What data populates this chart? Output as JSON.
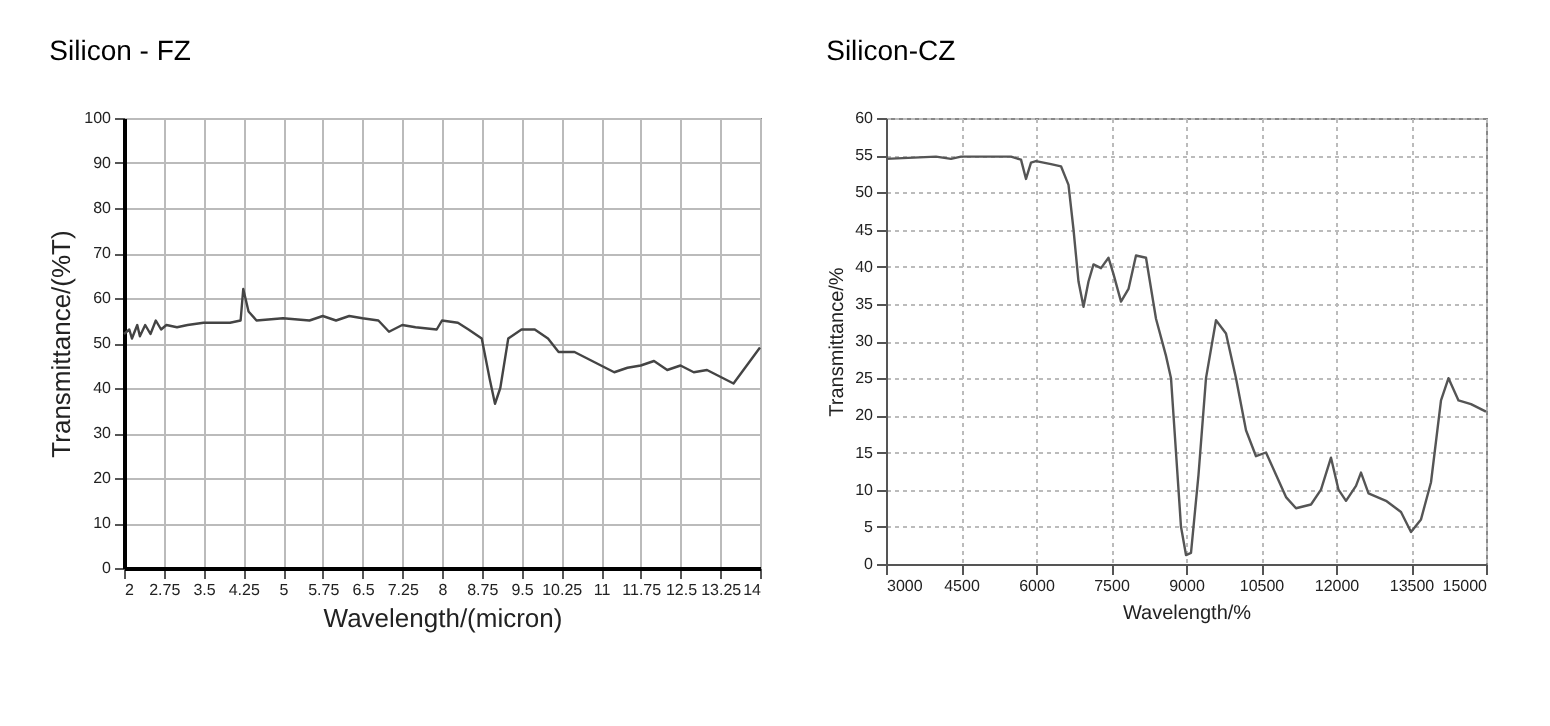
{
  "chart_data": [
    {
      "type": "line",
      "title": "Silicon - FZ",
      "xlabel": "Wavelength/(micron)",
      "ylabel": "Transmittance/(%T)",
      "color": "#444444",
      "grid": true,
      "xlim": [
        2,
        14
      ],
      "ylim": [
        0,
        100
      ],
      "xticks": [
        2,
        2.75,
        3.5,
        4.25,
        5,
        5.75,
        6.5,
        7.25,
        8,
        8.75,
        9.5,
        10.25,
        11,
        11.75,
        12.5,
        13.25,
        14
      ],
      "yticks": [
        0,
        10,
        20,
        30,
        40,
        50,
        60,
        70,
        80,
        90,
        100
      ],
      "x": [
        2,
        2.1,
        2.15,
        2.25,
        2.3,
        2.4,
        2.5,
        2.6,
        2.7,
        2.8,
        3,
        3.2,
        3.5,
        3.8,
        4,
        4.2,
        4.25,
        4.35,
        4.5,
        5,
        5.5,
        5.75,
        6,
        6.25,
        6.5,
        6.8,
        7,
        7.25,
        7.5,
        7.9,
        8,
        8.3,
        8.5,
        8.75,
        8.9,
        9,
        9.1,
        9.25,
        9.5,
        9.75,
        10,
        10.2,
        10.5,
        11,
        11.25,
        11.5,
        11.75,
        12,
        12.25,
        12.5,
        12.75,
        13,
        13.25,
        13.5,
        13.75,
        14
      ],
      "values": [
        52,
        53,
        51,
        54,
        51.5,
        54,
        52,
        55,
        53,
        54,
        53.5,
        54,
        54.5,
        54.5,
        54.5,
        55,
        62,
        57,
        55,
        55.5,
        55,
        56,
        55,
        56,
        55.5,
        55,
        52.5,
        54,
        53.5,
        53,
        55,
        54.5,
        53,
        51,
        42,
        36.5,
        40,
        51,
        53,
        53,
        51,
        48,
        48,
        45,
        43.5,
        44.5,
        45,
        46,
        44,
        45,
        43.5,
        44,
        42.5,
        41,
        45,
        49
      ]
    },
    {
      "type": "line",
      "title": "Silicon-CZ",
      "xlabel": "Wavelength/%",
      "ylabel": "Transmittance/%",
      "color": "#555555",
      "grid": true,
      "xlim": [
        3000,
        15000
      ],
      "ylim": [
        0,
        60
      ],
      "xticks": [
        3000,
        4500,
        6000,
        7500,
        9000,
        10500,
        12000,
        13500,
        15000
      ],
      "yticks": [
        0,
        5,
        10,
        15,
        20,
        25,
        30,
        35,
        40,
        45,
        50,
        55,
        60
      ],
      "x": [
        3000,
        4000,
        4300,
        4500,
        5500,
        5700,
        5800,
        5900,
        6000,
        6300,
        6500,
        6650,
        6750,
        6850,
        6950,
        7050,
        7150,
        7300,
        7450,
        7550,
        7700,
        7850,
        8000,
        8200,
        8400,
        8600,
        8700,
        8800,
        8900,
        9000,
        9100,
        9250,
        9400,
        9600,
        9800,
        10000,
        10200,
        10400,
        10600,
        10800,
        11000,
        11200,
        11500,
        11700,
        11900,
        12050,
        12200,
        12400,
        12500,
        12650,
        13000,
        13300,
        13500,
        13700,
        13900,
        14100,
        14250,
        14450,
        14700,
        15000
      ],
      "values": [
        54.5,
        54.8,
        54.5,
        54.8,
        54.8,
        54.4,
        51.8,
        54,
        54.2,
        53.8,
        53.5,
        51,
        45,
        38,
        34.6,
        38,
        40.3,
        39.8,
        41.2,
        39,
        35.3,
        37,
        41.5,
        41.2,
        33,
        28,
        25,
        15,
        5,
        1.2,
        1.5,
        12,
        25,
        32.8,
        31,
        25,
        18,
        14.5,
        15,
        12,
        9,
        7.5,
        8,
        10,
        14.3,
        10,
        8.5,
        10.5,
        12.3,
        9.5,
        8.5,
        7,
        4.3,
        6,
        11,
        22,
        25,
        22,
        21.5,
        20.5
      ]
    }
  ]
}
